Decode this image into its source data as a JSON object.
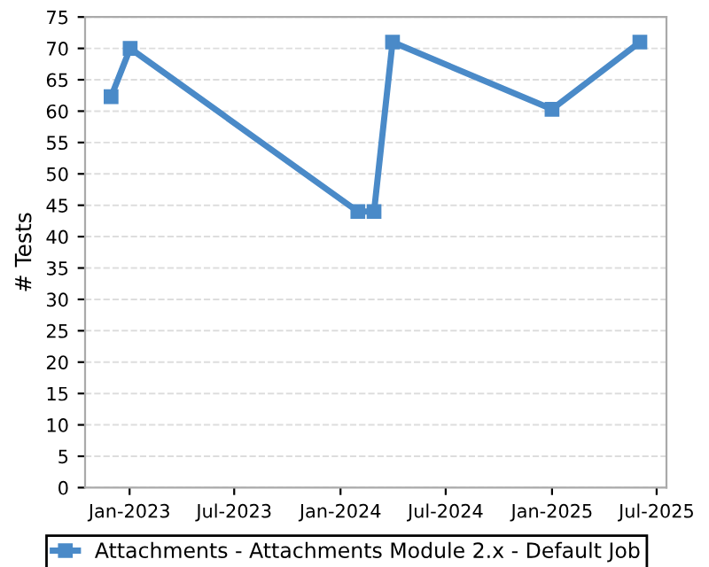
{
  "chart_data": {
    "type": "line",
    "ylabel": "# Tests",
    "x": [
      "2022-11-30",
      "2023-01-02",
      "2024-01-31",
      "2024-02-28",
      "2024-03-31",
      "2025-01-01",
      "2025-06-02"
    ],
    "series": [
      {
        "name": "Attachments - Attachments Module 2.x - Default Job",
        "color": "#4a8ac8",
        "values": [
          62.3,
          70,
          44,
          44,
          71,
          60.3,
          71
        ]
      }
    ],
    "xlim": [
      "2022-10-16",
      "2025-07-18"
    ],
    "xticks": [
      {
        "value": "2023-01-01",
        "label": "Jan-2023"
      },
      {
        "value": "2023-07-01",
        "label": "Jul-2023"
      },
      {
        "value": "2024-01-01",
        "label": "Jan-2024"
      },
      {
        "value": "2024-07-01",
        "label": "Jul-2024"
      },
      {
        "value": "2025-01-01",
        "label": "Jan-2025"
      },
      {
        "value": "2025-07-01",
        "label": "Jul-2025"
      }
    ],
    "ylim": [
      0,
      75
    ],
    "yticks": [
      0,
      5,
      10,
      15,
      20,
      25,
      30,
      35,
      40,
      45,
      50,
      55,
      60,
      65,
      70,
      75
    ],
    "grid": "y",
    "legend": "bottom",
    "marker": "square",
    "line_style": "solid"
  }
}
